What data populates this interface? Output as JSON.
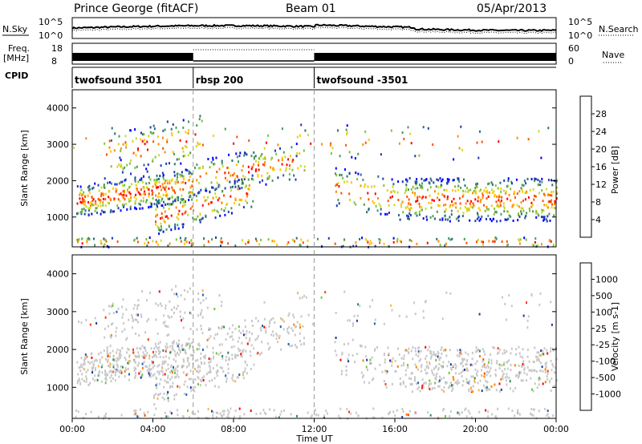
{
  "header": {
    "station": "Prince George (fitACF)",
    "beam": "Beam 01",
    "date": "05/Apr/2013"
  },
  "noise_panel": {
    "left_label": "N.Sky",
    "right_label": "N.Search",
    "left_ticks": [
      "10^5",
      "10^0"
    ],
    "right_ticks": [
      "10^5",
      "10^0"
    ]
  },
  "freq_panel": {
    "left_label_1": "Freq.",
    "left_label_2": "[MHz]",
    "left_ticks": [
      "18",
      "8"
    ],
    "right_label": "Nave",
    "right_ticks": [
      "60",
      "0"
    ],
    "cpid_label": "CPID"
  },
  "cpid_segments": [
    {
      "name": "twofsound 3501",
      "start": 0,
      "end": 6
    },
    {
      "name": "rbsp 200",
      "start": 6,
      "end": 12
    },
    {
      "name": "twofsound -3501",
      "start": 12,
      "end": 24
    }
  ],
  "power_panel": {
    "ylabel": "Slant Range [km]",
    "cbar_label": "Power [dB]",
    "cbar_ticks": [
      "28",
      "24",
      "20",
      "16",
      "12",
      "8",
      "4"
    ],
    "colors": [
      "#0000ff",
      "#1e3cb4",
      "#2d6e7d",
      "#4a9a5a",
      "#7fc23a",
      "#c8dc28",
      "#ffc800",
      "#ff8c00",
      "#ff5000",
      "#ff0000"
    ]
  },
  "velocity_panel": {
    "ylabel": "Slant Range [km]",
    "cbar_label": "Velocity [m s-1]",
    "cbar_ticks": [
      "1000",
      "500",
      "100",
      "25",
      "-25",
      "-100",
      "-500",
      "-1000"
    ],
    "colors": [
      "#ff0000",
      "#ff3c00",
      "#ff8000",
      "#ffb43c",
      "#c8c8c8",
      "#c8c8c8",
      "#6ec832",
      "#2e8b57",
      "#1e64b4",
      "#1e3ca0"
    ]
  },
  "range_ticks": [
    "4000",
    "3000",
    "2000",
    "1000"
  ],
  "time_ticks": [
    "00:00",
    "04:00",
    "08:00",
    "12:00",
    "16:00",
    "20:00",
    "00:00"
  ],
  "xlabel": "Time UT",
  "chart_data": {
    "type": "heatmap",
    "x_range_hours": [
      0,
      24
    ],
    "y_range_km": [
      180,
      4500
    ],
    "range_ticks_km": [
      1000,
      2000,
      3000,
      4000
    ],
    "power_range_db": [
      0,
      30
    ],
    "velocity_range": [
      -1000,
      1000
    ],
    "cpid_boundaries_hours": [
      6,
      12
    ]
  }
}
